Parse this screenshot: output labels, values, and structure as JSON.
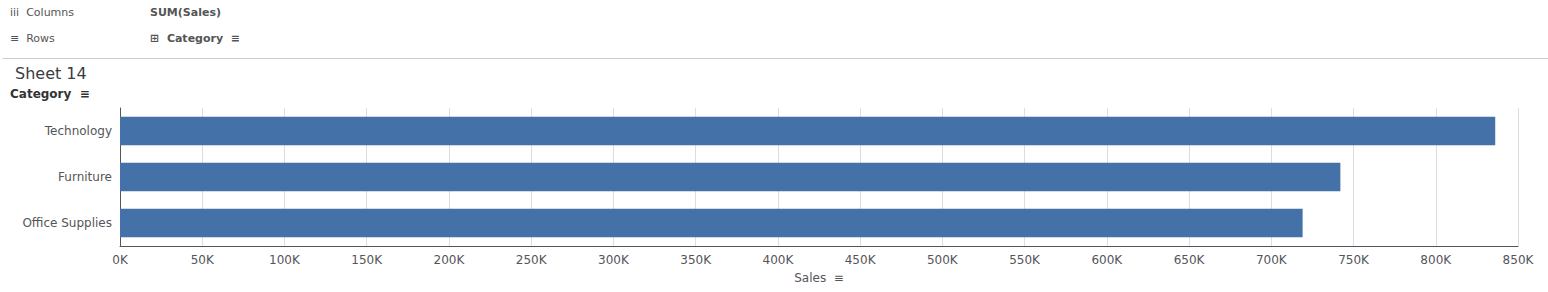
{
  "chart_data": {
    "type": "bar",
    "orientation": "horizontal",
    "title": "Sheet 14",
    "xlabel": "Sales  ≡",
    "ylabel": "Category  ≡",
    "annotations": [
      "iii  Columns",
      "SUM(Sales)",
      "≡  Rows",
      "⊞  Category  ≡"
    ],
    "categories": [
      "Technology",
      "Furniture",
      "Office Supplies"
    ],
    "values": [
      836154,
      741999,
      719047
    ],
    "color": "#4472a8",
    "xlim": [
      0,
      850000
    ],
    "xticks": [
      {
        "value": 0,
        "label": "0K"
      },
      {
        "value": 50000,
        "label": "50K"
      },
      {
        "value": 100000,
        "label": "100K"
      },
      {
        "value": 150000,
        "label": "150K"
      },
      {
        "value": 200000,
        "label": "200K"
      },
      {
        "value": 250000,
        "label": "250K"
      },
      {
        "value": 300000,
        "label": "300K"
      },
      {
        "value": 350000,
        "label": "350K"
      },
      {
        "value": 400000,
        "label": "400K"
      },
      {
        "value": 450000,
        "label": "450K"
      },
      {
        "value": 500000,
        "label": "500K"
      },
      {
        "value": 550000,
        "label": "550K"
      },
      {
        "value": 600000,
        "label": "600K"
      },
      {
        "value": 650000,
        "label": "650K"
      },
      {
        "value": 700000,
        "label": "700K"
      },
      {
        "value": 750000,
        "label": "750K"
      },
      {
        "value": 800000,
        "label": "800K"
      },
      {
        "value": 850000,
        "label": "850K"
      }
    ],
    "grid": true
  }
}
